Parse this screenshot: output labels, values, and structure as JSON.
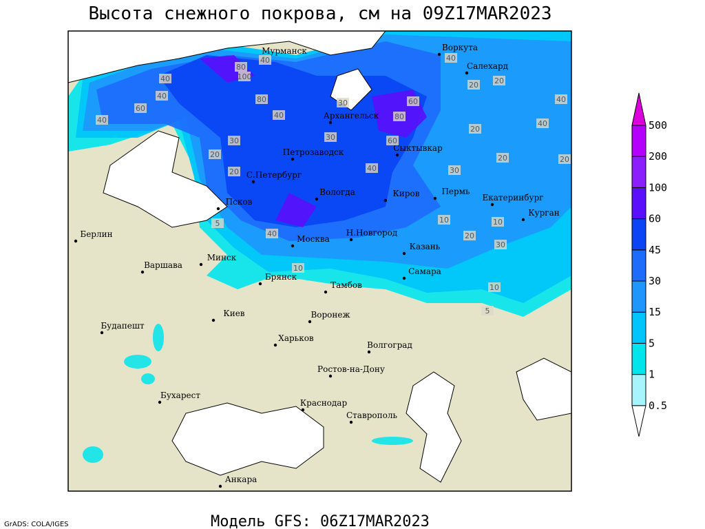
{
  "header": {
    "title": "Высота снежного покрова, см на 09Z17MAR2023"
  },
  "footer": {
    "model": "Модель GFS: 06Z17MAR2023",
    "credit": "GrADS: COLA/IGES"
  },
  "legend": {
    "levels": [
      0.5,
      1,
      5,
      15,
      30,
      45,
      60,
      100,
      200,
      500
    ],
    "colors": [
      "#ffffff",
      "#a8f4fc",
      "#00e4ec",
      "#00c4fc",
      "#1e96fc",
      "#1e6cfc",
      "#0a44f4",
      "#5a10fc",
      "#8c20fc",
      "#b400fc",
      "#dc00dc"
    ]
  },
  "cities": [
    "Мурманск",
    "Воркута",
    "Салехард",
    "Архангельск",
    "Сыктывкар",
    "Петрозаводск",
    "С.Петербург",
    "Вологда",
    "Киров",
    "Пермь",
    "Екатеринбург",
    "Курган",
    "Псков",
    "Москва",
    "Н.Новгород",
    "Казань",
    "Берлин",
    "Варшава",
    "Минск",
    "Брянск",
    "Тамбов",
    "Самара",
    "Киев",
    "Воронеж",
    "Будапешт",
    "Харьков",
    "Волгоград",
    "Ростов-на-Дону",
    "Бухарест",
    "Краснодар",
    "Ставрополь",
    "Анкара"
  ],
  "contour_labels": [
    40,
    80,
    100,
    40,
    60,
    40,
    40,
    60,
    80,
    40,
    20,
    20,
    30,
    30,
    40,
    20,
    20,
    60,
    80,
    40,
    40,
    20,
    20,
    30,
    40,
    10,
    10,
    20,
    30,
    10,
    5,
    20,
    5,
    10,
    40,
    30
  ]
}
